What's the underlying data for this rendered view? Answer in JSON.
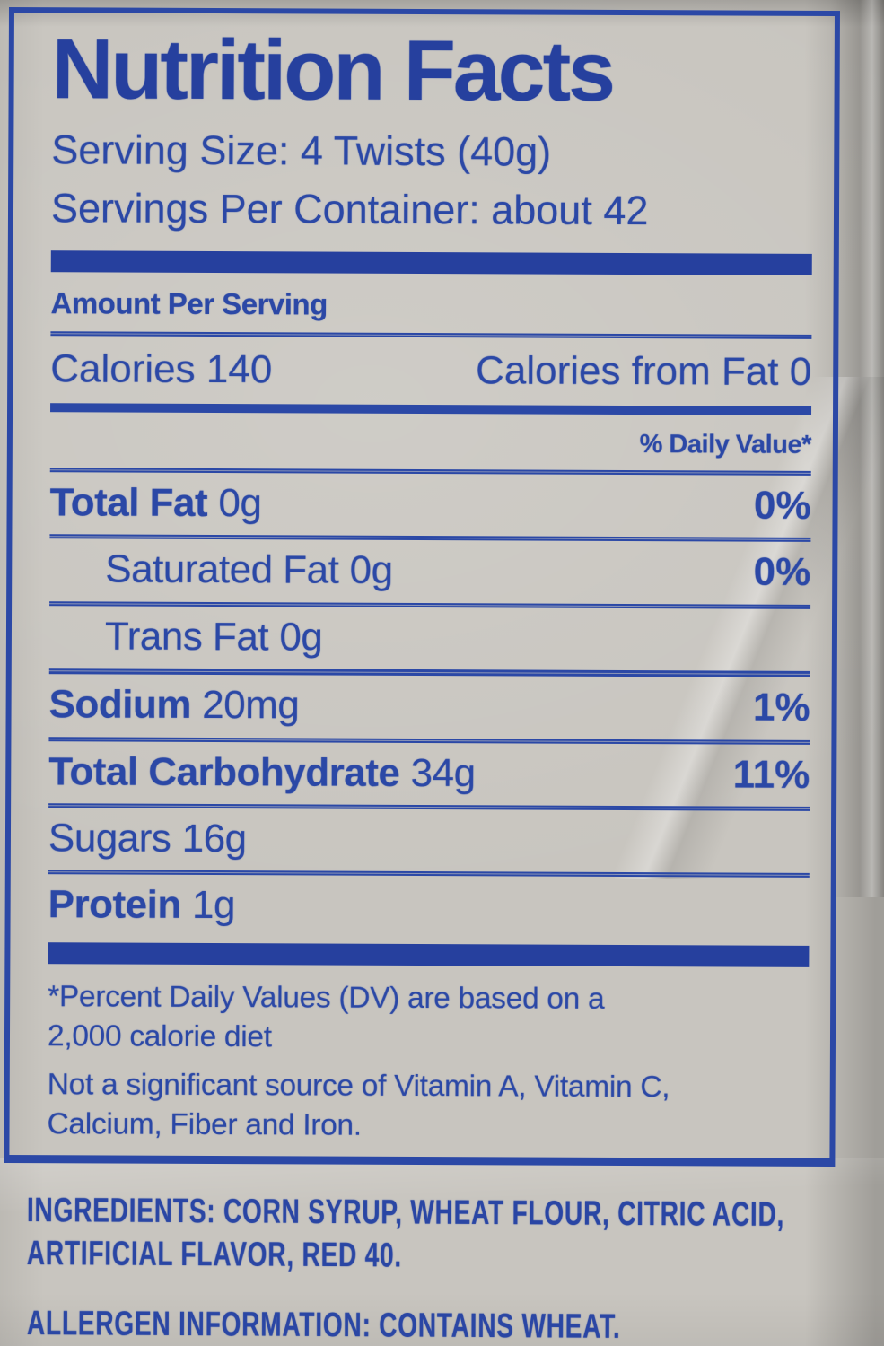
{
  "label": {
    "title": "Nutrition Facts",
    "serving_size": "Serving Size: 4 Twists (40g)",
    "servings_per_container": "Servings Per Container: about 42",
    "amount_per_serving": "Amount Per Serving",
    "calories": {
      "label": "Calories",
      "value": "140",
      "from_fat_label": "Calories from Fat",
      "from_fat_value": "0"
    },
    "daily_value_header": "% Daily Value*",
    "rows": [
      {
        "name": "Total Fat",
        "amount": "0g",
        "dv": "0%"
      },
      {
        "name": "Saturated Fat",
        "amount": "0g",
        "dv": "0%"
      },
      {
        "name": "Trans Fat",
        "amount": "0g",
        "dv": ""
      },
      {
        "name": "Sodium",
        "amount": "20mg",
        "dv": "1%"
      },
      {
        "name": "Total Carbohydrate",
        "amount": "34g",
        "dv": "11%"
      },
      {
        "name": "Sugars",
        "amount": "16g",
        "dv": ""
      },
      {
        "name": "Protein",
        "amount": "1g",
        "dv": ""
      }
    ],
    "footnote": {
      "line1": "*Percent Daily Values (DV) are based on a",
      "line2": "2,000 calorie diet",
      "note_line1": "Not a significant source of Vitamin A, Vitamin C,",
      "note_line2": "Calcium, Fiber and Iron."
    }
  },
  "bottom": {
    "ingredients_line1": "INGREDIENTS: CORN SYRUP, WHEAT FLOUR, CITRIC ACID,",
    "ingredients_line2": "ARTIFICIAL FLAVOR, RED 40.",
    "allergen": "ALLERGEN INFORMATION: CONTAINS WHEAT."
  },
  "colors": {
    "ink": "#2b48a6",
    "bag": "#c8c5bf"
  }
}
